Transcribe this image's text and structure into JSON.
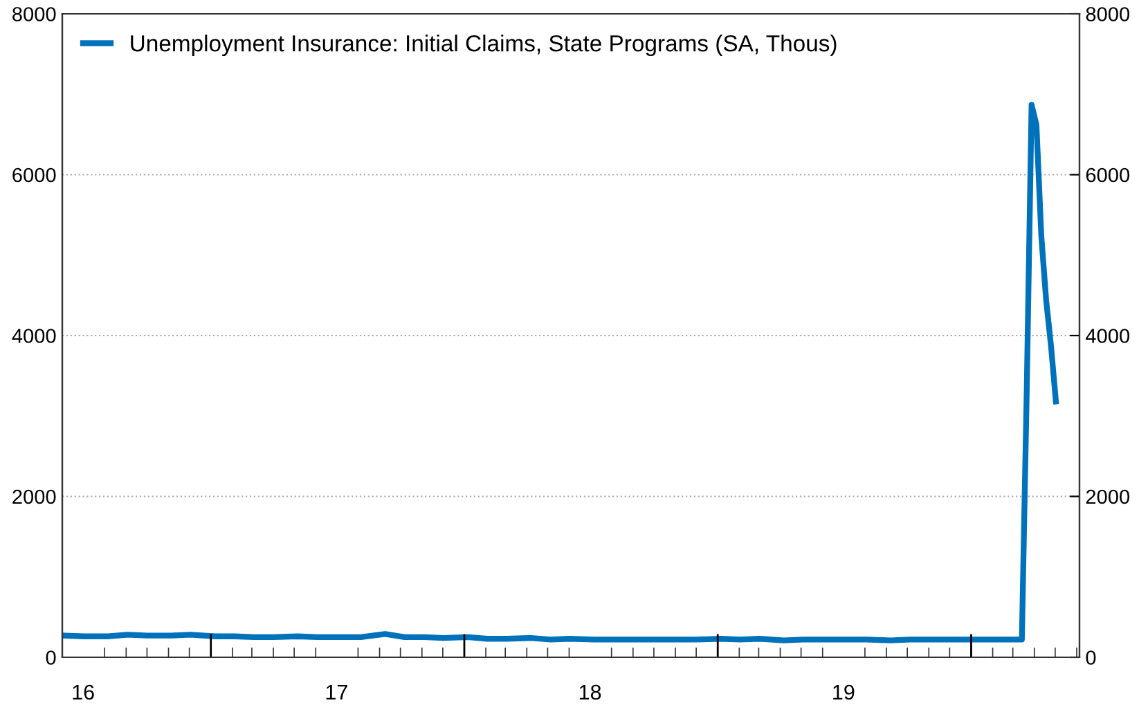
{
  "chart_data": {
    "type": "line",
    "x": [
      "2016-06-04",
      "2016-07-02",
      "2016-08-06",
      "2016-09-03",
      "2016-10-01",
      "2016-11-05",
      "2016-12-03",
      "2017-01-07",
      "2017-02-04",
      "2017-03-04",
      "2017-04-01",
      "2017-05-06",
      "2017-06-03",
      "2017-07-01",
      "2017-08-05",
      "2017-09-09",
      "2017-10-07",
      "2017-11-04",
      "2017-12-02",
      "2018-01-06",
      "2018-02-03",
      "2018-03-03",
      "2018-04-07",
      "2018-05-05",
      "2018-06-02",
      "2018-07-07",
      "2018-08-04",
      "2018-09-01",
      "2018-10-06",
      "2018-11-03",
      "2018-12-01",
      "2019-01-05",
      "2019-02-02",
      "2019-03-02",
      "2019-04-06",
      "2019-05-04",
      "2019-06-01",
      "2019-07-06",
      "2019-08-03",
      "2019-09-07",
      "2019-10-05",
      "2019-11-02",
      "2019-12-07",
      "2020-01-04",
      "2020-02-01",
      "2020-03-07",
      "2020-03-14",
      "2020-03-21",
      "2020-03-28",
      "2020-04-04",
      "2020-04-11",
      "2020-04-18",
      "2020-04-25",
      "2020-05-02"
    ],
    "series": [
      {
        "name": "Unemployment Insurance: Initial Claims, State Programs (SA, Thous)",
        "color": "#0072bb",
        "values": [
          270,
          260,
          260,
          280,
          270,
          270,
          280,
          260,
          260,
          250,
          250,
          260,
          250,
          250,
          250,
          290,
          250,
          250,
          240,
          250,
          230,
          230,
          240,
          220,
          230,
          220,
          220,
          220,
          220,
          220,
          220,
          230,
          220,
          230,
          210,
          220,
          220,
          220,
          220,
          210,
          220,
          220,
          220,
          220,
          220,
          220,
          220,
          3300,
          6870,
          6620,
          5240,
          4440,
          3870,
          3180
        ]
      }
    ],
    "xlim": [
      "2016-06-01",
      "2020-06-05"
    ],
    "xticks": [
      {
        "value": "2016-07-01",
        "label": "16"
      },
      {
        "value": "2017-07-01",
        "label": "17"
      },
      {
        "value": "2018-07-01",
        "label": "18"
      },
      {
        "value": "2019-07-01",
        "label": "19"
      }
    ],
    "ylim": [
      0,
      8000
    ],
    "yticks": [
      0,
      2000,
      4000,
      6000,
      8000
    ],
    "y2lim": [
      0,
      8000
    ],
    "y2ticks": [
      0,
      2000,
      4000,
      6000,
      8000
    ],
    "grid": "y",
    "legend": "top left",
    "line_style": "solid",
    "marker": "none"
  }
}
